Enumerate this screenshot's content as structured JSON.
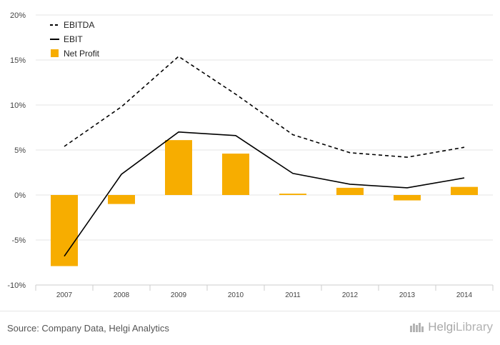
{
  "chart_data": {
    "type": "bar",
    "categories": [
      "2007",
      "2008",
      "2009",
      "2010",
      "2011",
      "2012",
      "2013",
      "2014"
    ],
    "y_ticks": [
      "20%",
      "15%",
      "10%",
      "5%",
      "0%",
      "-5%",
      "-10%"
    ],
    "ylim": [
      -10,
      20
    ],
    "grid": true,
    "legend_position": "top-left",
    "series": [
      {
        "name": "EBITDA",
        "style": "dashed-line",
        "color": "#000000",
        "values": [
          5.4,
          9.8,
          15.4,
          11.2,
          6.7,
          4.7,
          4.2,
          5.3
        ]
      },
      {
        "name": "EBIT",
        "style": "line",
        "color": "#000000",
        "values": [
          -6.8,
          2.3,
          7.0,
          6.6,
          2.4,
          1.2,
          0.8,
          1.9
        ]
      },
      {
        "name": "Net Profit",
        "style": "bar",
        "color": "#f7ad00",
        "values": [
          -7.9,
          -1.0,
          6.1,
          4.6,
          0.15,
          0.8,
          -0.6,
          0.9
        ]
      }
    ]
  },
  "footer": {
    "source": "Source: Company Data, Helgi Analytics",
    "brand_a": "Helgi",
    "brand_b": "Library"
  },
  "colors": {
    "grid": "#e6e6e6",
    "axis": "#cccccc",
    "bar": "#f7ad00"
  }
}
